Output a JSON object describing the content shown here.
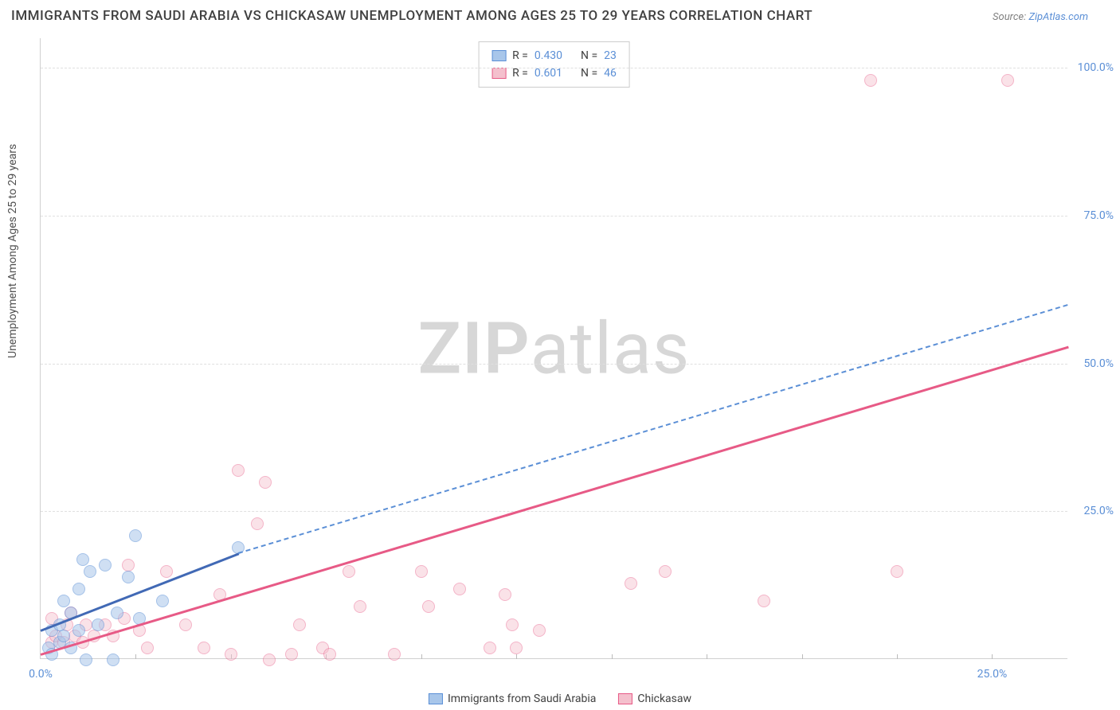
{
  "chart": {
    "type": "scatter",
    "title": "IMMIGRANTS FROM SAUDI ARABIA VS CHICKASAW UNEMPLOYMENT AMONG AGES 25 TO 29 YEARS CORRELATION CHART",
    "source_label": "Source:",
    "source_name": "ZipAtlas.com",
    "y_axis_label": "Unemployment Among Ages 25 to 29 years",
    "watermark_bold": "ZIP",
    "watermark_light": "atlas",
    "background_color": "#ffffff",
    "grid_color": "#e0e0e0",
    "axis_color": "#d0d0d0",
    "tick_label_color": "#5b8fd6",
    "title_color": "#404040",
    "title_fontsize": 17,
    "label_fontsize": 14,
    "xlim": [
      0,
      27
    ],
    "ylim": [
      0,
      105
    ],
    "y_ticks": [
      {
        "value": 25,
        "label": "25.0%"
      },
      {
        "value": 50,
        "label": "50.0%"
      },
      {
        "value": 75,
        "label": "75.0%"
      },
      {
        "value": 100,
        "label": "100.0%"
      }
    ],
    "x_ticks": [
      {
        "value": 0,
        "label": "0.0%"
      },
      {
        "value": 25,
        "label": "25.0%"
      }
    ],
    "x_minor_ticks": [
      2.5,
      5,
      7.5,
      10,
      12.5,
      15,
      17.5,
      20,
      22.5,
      25
    ],
    "series": [
      {
        "name": "Immigrants from Saudi Arabia",
        "fill_color": "#a8c6ea",
        "stroke_color": "#5b8fd6",
        "marker_radius": 8,
        "fill_opacity": 0.55,
        "R": "0.430",
        "N": "23",
        "trend": {
          "x1": 0,
          "y1": 5,
          "x2": 5.2,
          "y2": 18,
          "extend_x2": 27,
          "extend_y2": 60,
          "solid_color": "#4169b5",
          "dash_color": "#5b8fd6",
          "width": 3
        },
        "points": [
          {
            "x": 0.2,
            "y": 4
          },
          {
            "x": 0.3,
            "y": 3
          },
          {
            "x": 0.3,
            "y": 7
          },
          {
            "x": 0.5,
            "y": 5
          },
          {
            "x": 0.5,
            "y": 8
          },
          {
            "x": 0.6,
            "y": 6
          },
          {
            "x": 0.6,
            "y": 12
          },
          {
            "x": 0.8,
            "y": 4
          },
          {
            "x": 0.8,
            "y": 10
          },
          {
            "x": 1.0,
            "y": 7
          },
          {
            "x": 1.0,
            "y": 14
          },
          {
            "x": 1.1,
            "y": 19
          },
          {
            "x": 1.2,
            "y": 2
          },
          {
            "x": 1.3,
            "y": 17
          },
          {
            "x": 1.5,
            "y": 8
          },
          {
            "x": 1.7,
            "y": 18
          },
          {
            "x": 1.9,
            "y": 2
          },
          {
            "x": 2.0,
            "y": 10
          },
          {
            "x": 2.3,
            "y": 16
          },
          {
            "x": 2.5,
            "y": 23
          },
          {
            "x": 2.6,
            "y": 9
          },
          {
            "x": 3.2,
            "y": 12
          },
          {
            "x": 5.2,
            "y": 21
          }
        ]
      },
      {
        "name": "Chickasaw",
        "fill_color": "#f4c0cd",
        "stroke_color": "#e75a86",
        "marker_radius": 8,
        "fill_opacity": 0.45,
        "R": "0.601",
        "N": "46",
        "trend": {
          "x1": 0,
          "y1": 1,
          "x2": 27,
          "y2": 53,
          "solid_color": "#e75a86",
          "width": 3
        },
        "points": [
          {
            "x": 0.3,
            "y": 5
          },
          {
            "x": 0.3,
            "y": 9
          },
          {
            "x": 0.4,
            "y": 6
          },
          {
            "x": 0.6,
            "y": 5
          },
          {
            "x": 0.7,
            "y": 8
          },
          {
            "x": 0.8,
            "y": 10
          },
          {
            "x": 0.9,
            "y": 6
          },
          {
            "x": 1.1,
            "y": 5
          },
          {
            "x": 1.2,
            "y": 8
          },
          {
            "x": 1.4,
            "y": 6
          },
          {
            "x": 1.7,
            "y": 8
          },
          {
            "x": 1.9,
            "y": 6
          },
          {
            "x": 2.2,
            "y": 9
          },
          {
            "x": 2.3,
            "y": 18
          },
          {
            "x": 2.6,
            "y": 7
          },
          {
            "x": 2.8,
            "y": 4
          },
          {
            "x": 3.3,
            "y": 17
          },
          {
            "x": 3.8,
            "y": 8
          },
          {
            "x": 4.3,
            "y": 4
          },
          {
            "x": 4.7,
            "y": 13
          },
          {
            "x": 5.0,
            "y": 3
          },
          {
            "x": 5.2,
            "y": 34
          },
          {
            "x": 5.7,
            "y": 25
          },
          {
            "x": 5.9,
            "y": 32
          },
          {
            "x": 6.0,
            "y": 2
          },
          {
            "x": 6.6,
            "y": 3
          },
          {
            "x": 6.8,
            "y": 8
          },
          {
            "x": 7.4,
            "y": 4
          },
          {
            "x": 7.6,
            "y": 3
          },
          {
            "x": 8.1,
            "y": 17
          },
          {
            "x": 8.4,
            "y": 11
          },
          {
            "x": 9.3,
            "y": 3
          },
          {
            "x": 10.0,
            "y": 17
          },
          {
            "x": 10.2,
            "y": 11
          },
          {
            "x": 11.0,
            "y": 14
          },
          {
            "x": 11.8,
            "y": 4
          },
          {
            "x": 12.2,
            "y": 13
          },
          {
            "x": 12.4,
            "y": 8
          },
          {
            "x": 12.5,
            "y": 4
          },
          {
            "x": 13.1,
            "y": 7
          },
          {
            "x": 15.5,
            "y": 15
          },
          {
            "x": 16.4,
            "y": 17
          },
          {
            "x": 19.0,
            "y": 12
          },
          {
            "x": 21.8,
            "y": 100
          },
          {
            "x": 22.5,
            "y": 17
          },
          {
            "x": 25.4,
            "y": 100
          }
        ]
      }
    ],
    "legend_top": {
      "R_label": "R =",
      "N_label": "N ="
    }
  }
}
